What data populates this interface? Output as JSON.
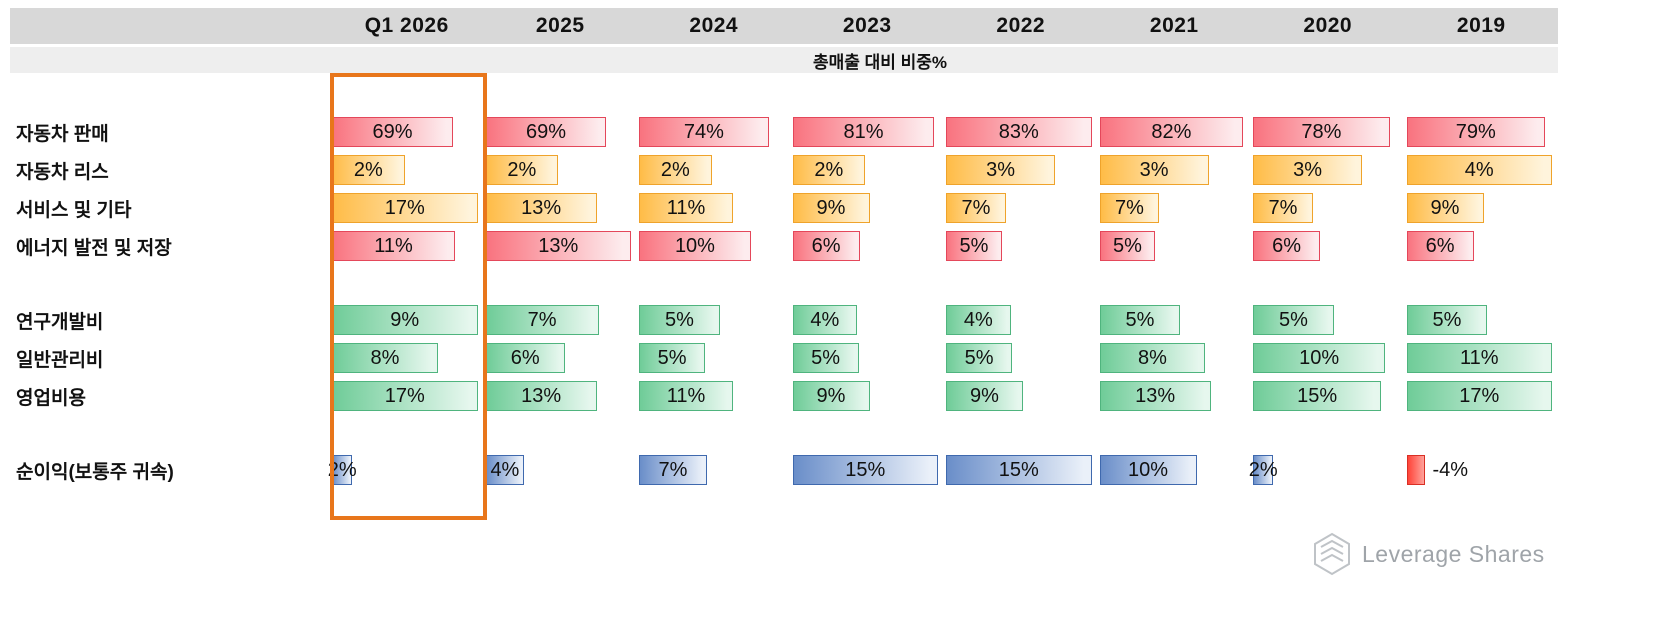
{
  "chart_data": {
    "type": "table",
    "title": "총매출 대비 비중%",
    "columns": [
      "Q1 2026",
      "2025",
      "2024",
      "2023",
      "2022",
      "2021",
      "2020",
      "2019"
    ],
    "value_suffix": "%",
    "highlight_column": "Q1 2026",
    "groups": [
      {
        "name": "revenue-mix",
        "rows": [
          {
            "label": "자동차 판매",
            "color": "red",
            "values": [
              69,
              69,
              74,
              81,
              83,
              82,
              78,
              79
            ]
          },
          {
            "label": "자동차 리스",
            "color": "orange",
            "values": [
              2,
              2,
              2,
              2,
              3,
              3,
              3,
              4
            ]
          },
          {
            "label": "서비스 및 기타",
            "color": "orange",
            "values": [
              17,
              13,
              11,
              9,
              7,
              7,
              7,
              9
            ]
          },
          {
            "label": "에너지 발전 및 저장",
            "color": "red",
            "values": [
              11,
              13,
              10,
              6,
              5,
              5,
              6,
              6
            ]
          }
        ]
      },
      {
        "name": "expenses",
        "rows": [
          {
            "label": "연구개발비",
            "color": "green",
            "values": [
              9,
              7,
              5,
              4,
              4,
              5,
              5,
              5
            ]
          },
          {
            "label": "일반관리비",
            "color": "green",
            "values": [
              8,
              6,
              5,
              5,
              5,
              8,
              10,
              11
            ]
          },
          {
            "label": "영업비용",
            "color": "green",
            "values": [
              17,
              13,
              11,
              9,
              9,
              13,
              15,
              17
            ]
          }
        ]
      },
      {
        "name": "net-income",
        "rows": [
          {
            "label": "순이익(보통주 귀속)",
            "color": "blue",
            "values": [
              2,
              4,
              7,
              15,
              15,
              10,
              2,
              -4
            ]
          }
        ]
      }
    ]
  },
  "palette": {
    "red": {
      "border": "#E4475A",
      "from": "#F9737F",
      "to": "#FDECEE"
    },
    "orange": {
      "border": "#EFA32B",
      "from": "#FFBC47",
      "to": "#FFF4DC"
    },
    "green": {
      "border": "#4FB47E",
      "from": "#6FCC98",
      "to": "#E6F7EE"
    },
    "blue": {
      "border": "#3F69AE",
      "from": "#6A8EC9",
      "to": "#EAF0F9"
    },
    "negative": {
      "border": "#D93025",
      "from": "#FF4438",
      "to": "#FFA29B"
    },
    "highlight": "#E8761B",
    "header_band": "#D8D8D8",
    "subtitle_band": "#EEEEEE"
  },
  "branding": {
    "logo_text": "Leverage Shares"
  }
}
